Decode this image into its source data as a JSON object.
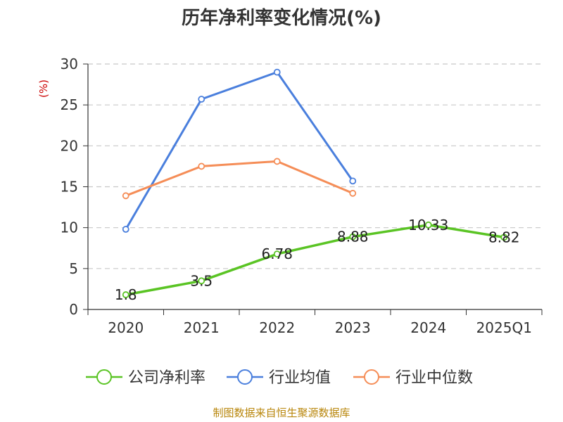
{
  "chart_data": {
    "type": "line",
    "title": "历年净利率变化情况(%)",
    "ylabel": "(%)",
    "xlabel": "",
    "categories": [
      "2020",
      "2021",
      "2022",
      "2023",
      "2024",
      "2025Q1"
    ],
    "ylim": [
      0,
      30
    ],
    "yticks": [
      0,
      5,
      10,
      15,
      20,
      25,
      30
    ],
    "grid": true,
    "legend_position": "bottom",
    "series": [
      {
        "name": "公司净利率",
        "color": "#5ac424",
        "values": [
          1.8,
          3.5,
          6.78,
          8.88,
          10.33,
          8.82
        ],
        "labels": [
          "1.8",
          "3.5",
          "6.78",
          "8.88",
          "10.33",
          "8.82"
        ]
      },
      {
        "name": "行业均值",
        "color": "#4a7fdd",
        "values": [
          9.8,
          25.7,
          29.0,
          15.7,
          null,
          null
        ]
      },
      {
        "name": "行业中位数",
        "color": "#f58d57",
        "values": [
          13.9,
          17.5,
          18.1,
          14.2,
          null,
          null
        ]
      }
    ]
  },
  "source": "制图数据来自恒生聚源数据库"
}
